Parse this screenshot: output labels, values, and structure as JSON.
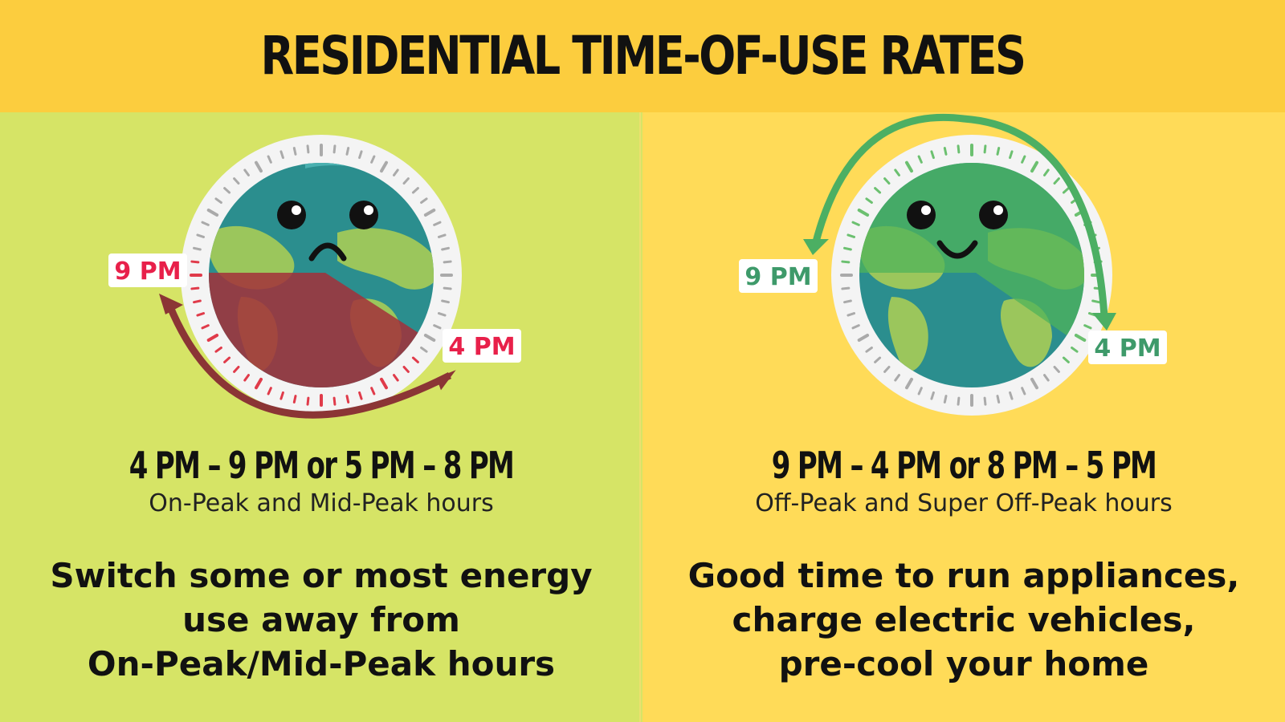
{
  "title": "RESIDENTIAL TIME-OF-USE RATES",
  "left": {
    "label_start": "9 PM",
    "label_end": "4 PM",
    "hours": "4 PM – 9 PM or 5 PM – 8 PM",
    "subtitle": "On-Peak and Mid-Peak hours",
    "description": [
      "Switch some or most energy",
      "use away from",
      "On-Peak/Mid-Peak hours"
    ],
    "label_color": "#e8204a",
    "arrow_color": "#8b3535"
  },
  "right": {
    "label_start": "9 PM",
    "label_end": "4 PM",
    "hours": "9 PM – 4 PM or 8 PM – 5 PM",
    "subtitle": "Off-Peak and Super Off-Peak hours",
    "description": [
      "Good time to run appliances,",
      "charge electric vehicles,",
      "pre-cool your home"
    ],
    "label_color": "#3e9a6a",
    "arrow_color": "#4caf63"
  },
  "colors": {
    "header_bg": "#fccd3e",
    "left_bg": "#d6e466",
    "right_bg": "#ffdb58",
    "ocean": "#2b8e8e",
    "land": "#9bc65c",
    "peak_overlay": "#a3303a"
  },
  "icons": {
    "left_globe": "sad-earth-clock-icon",
    "right_globe": "happy-earth-clock-icon"
  }
}
